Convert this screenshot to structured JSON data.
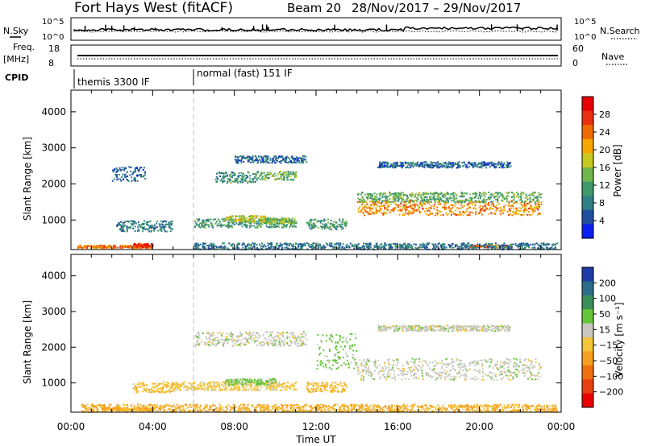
{
  "header": {
    "station": "Fort Hays West (fitACF)",
    "beam": "Beam 20",
    "dates": "28/Nov/2017 – 29/Nov/2017"
  },
  "top_panels": {
    "nsky_label": "N.Sky",
    "nsearch_label": "N.Search",
    "noise_ticks": [
      "10^5",
      "10^0"
    ],
    "freq_label": "Freq.",
    "freq_unit": "[MHz]",
    "freq_ticks": [
      "18",
      "8"
    ],
    "nave_label": "Nave",
    "nave_ticks": [
      "60",
      "0"
    ],
    "cpid_label": "CPID",
    "cpid_segments": [
      {
        "label": "themis 3300 IF",
        "start_h": 0,
        "end_h": 6
      },
      {
        "label": "normal (fast) 151 IF",
        "start_h": 6,
        "end_h": 24
      }
    ]
  },
  "time_axis": {
    "label": "Time UT",
    "ticks": [
      "00:00",
      "04:00",
      "08:00",
      "12:00",
      "16:00",
      "20:00",
      "00:00"
    ]
  },
  "range_axis": {
    "label": "Slant Range [km]",
    "ticks": [
      "1000",
      "2000",
      "3000",
      "4000"
    ]
  },
  "power_colorbar": {
    "label": "Power [dB]",
    "ticks": [
      "4",
      "8",
      "12",
      "16",
      "20",
      "24",
      "28"
    ],
    "colors": [
      "#0a1ff0",
      "#1f4f9e",
      "#2f7f86",
      "#3f9a6a",
      "#6fb54b",
      "#c8c820",
      "#f7a800",
      "#f06a00",
      "#e83010",
      "#e80000"
    ]
  },
  "velocity_colorbar": {
    "label": "Velocity [m s⁻¹]",
    "ticks": [
      "200",
      "100",
      "50",
      "15",
      "−15",
      "−50",
      "−100",
      "−200"
    ],
    "colors": [
      "#1e3aa8",
      "#2d6b8a",
      "#3a8f5a",
      "#66c43a",
      "#c8c8c0",
      "#f4c43a",
      "#f4a020",
      "#f07010",
      "#e84010",
      "#e80000"
    ]
  },
  "chart_data": [
    {
      "type": "heatmap",
      "title": "Power",
      "xlabel": "Time UT",
      "ylabel": "Slant Range [km]",
      "xlim": [
        0,
        24
      ],
      "ylim": [
        180,
        4600
      ],
      "colorbar": "Power [dB]",
      "clim": [
        0,
        30
      ],
      "features": [
        {
          "t0": 0.3,
          "t1": 4.0,
          "r": 280,
          "w": 40,
          "db": 22
        },
        {
          "t0": 3.0,
          "t1": 4.0,
          "r": 320,
          "w": 60,
          "db": 26
        },
        {
          "t0": 2.2,
          "t1": 5.0,
          "r": 850,
          "w": 150,
          "db": 8
        },
        {
          "t0": 2.0,
          "t1": 3.6,
          "r": 2300,
          "w": 200,
          "db": 6
        },
        {
          "t0": 6.0,
          "t1": 11.0,
          "r": 930,
          "w": 120,
          "db": 10
        },
        {
          "t0": 7.5,
          "t1": 9.5,
          "r": 1050,
          "w": 90,
          "db": 16
        },
        {
          "t0": 9.5,
          "t1": 11.0,
          "r": 1000,
          "w": 80,
          "db": 14
        },
        {
          "t0": 11.5,
          "t1": 13.5,
          "r": 900,
          "w": 140,
          "db": 10
        },
        {
          "t0": 7.0,
          "t1": 9.0,
          "r": 2200,
          "w": 150,
          "db": 9
        },
        {
          "t0": 9.0,
          "t1": 11.0,
          "r": 2250,
          "w": 120,
          "db": 12
        },
        {
          "t0": 8.0,
          "t1": 11.5,
          "r": 2700,
          "w": 100,
          "db": 6
        },
        {
          "t0": 14.0,
          "t1": 23.0,
          "r": 1350,
          "w": 200,
          "db": 21
        },
        {
          "t0": 14.0,
          "t1": 23.0,
          "r": 1650,
          "w": 140,
          "db": 12
        },
        {
          "t0": 15.0,
          "t1": 21.5,
          "r": 2550,
          "w": 80,
          "db": 6
        },
        {
          "t0": 19.5,
          "t1": 21.5,
          "r": 290,
          "w": 30,
          "db": 22
        },
        {
          "t0": 6.0,
          "t1": 23.8,
          "r": 260,
          "w": 120,
          "db": 7
        }
      ]
    },
    {
      "type": "heatmap",
      "title": "Velocity",
      "xlabel": "Time UT",
      "ylabel": "Slant Range [km]",
      "xlim": [
        0,
        24
      ],
      "ylim": [
        180,
        4600
      ],
      "colorbar": "Velocity [m s⁻¹]",
      "clim": [
        -200,
        200
      ],
      "features": [
        {
          "t0": 1.5,
          "t1": 4.0,
          "r": 280,
          "w": 40,
          "vel": -60
        },
        {
          "t0": 3.0,
          "t1": 5.0,
          "r": 900,
          "w": 150,
          "vel": -40
        },
        {
          "t0": 5.0,
          "t1": 11.0,
          "r": 930,
          "w": 120,
          "vel": -30
        },
        {
          "t0": 7.5,
          "t1": 10.0,
          "r": 1050,
          "w": 90,
          "vel": 30
        },
        {
          "t0": 6.0,
          "t1": 11.5,
          "r": 2250,
          "w": 200,
          "vel": 0
        },
        {
          "t0": 11.5,
          "t1": 13.5,
          "r": 900,
          "w": 140,
          "vel": -40
        },
        {
          "t0": 12.0,
          "t1": 14.0,
          "r": 1900,
          "w": 500,
          "vel": 25
        },
        {
          "t0": 14.0,
          "t1": 23.0,
          "r": 1400,
          "w": 300,
          "vel": 0
        },
        {
          "t0": 15.0,
          "t1": 21.5,
          "r": 2550,
          "w": 80,
          "vel": 0
        },
        {
          "t0": 0.5,
          "t1": 23.8,
          "r": 300,
          "w": 120,
          "vel": -50
        }
      ]
    }
  ]
}
